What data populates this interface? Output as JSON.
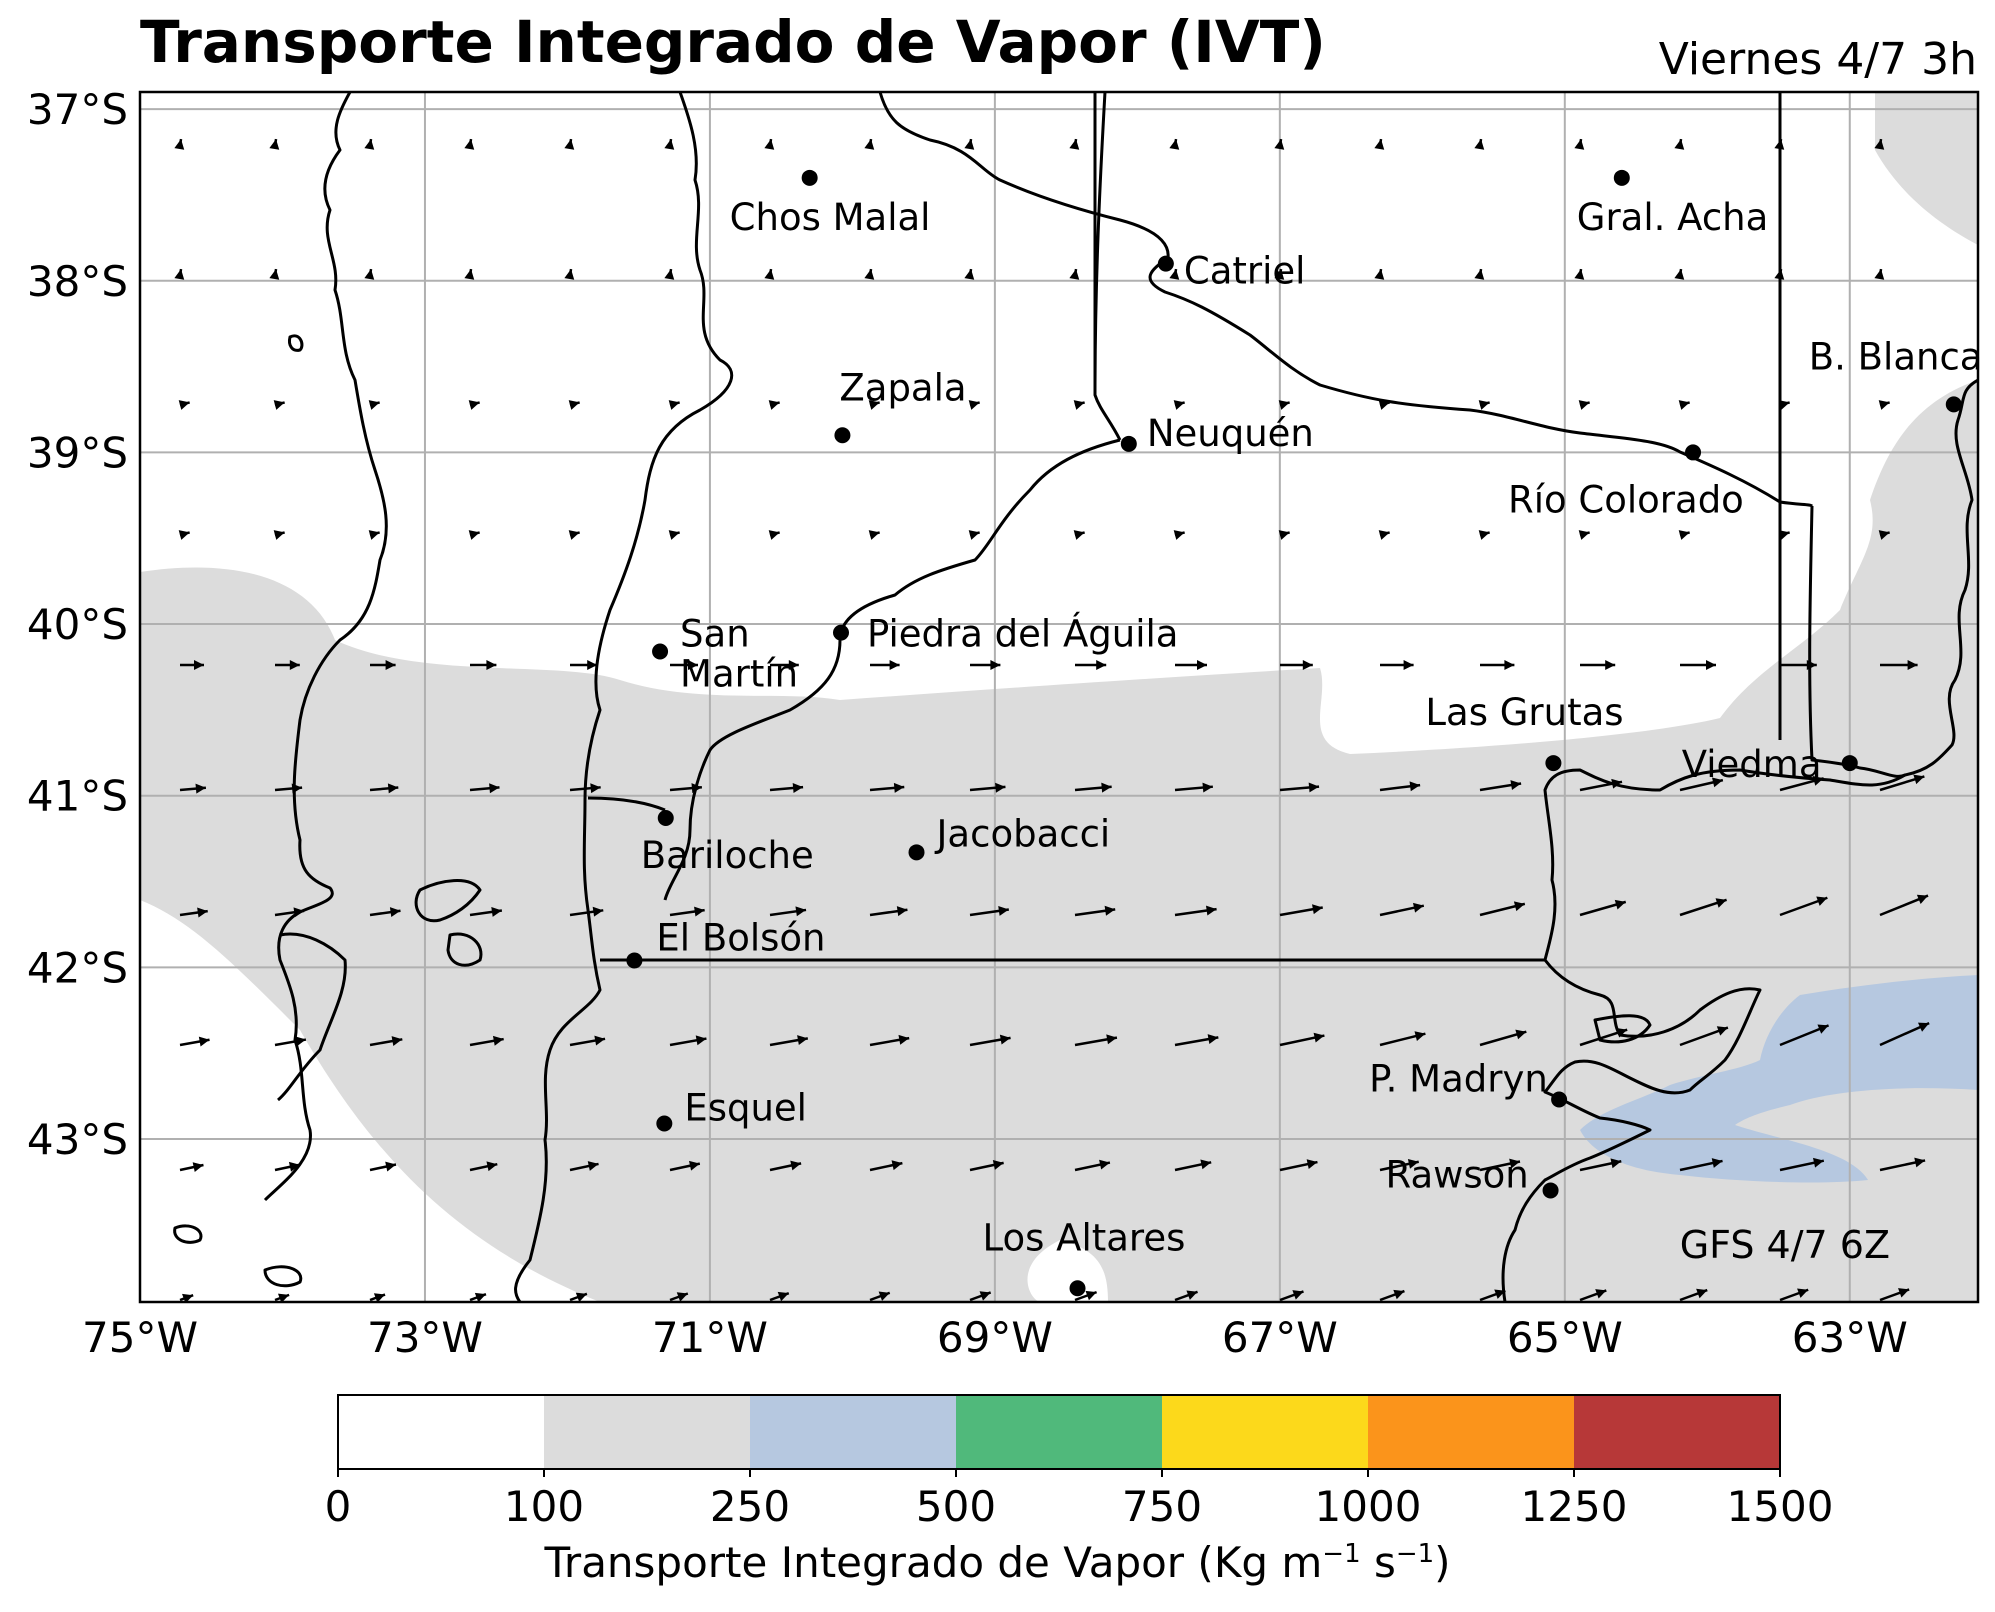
{
  "header": {
    "title": "Transporte Integrado de Vapor (IVT)",
    "date": "Viernes 4/7 3h"
  },
  "map": {
    "lon_range": [
      -75,
      -62.1
    ],
    "lat_range": [
      -43.95,
      -36.9
    ],
    "lat_ticks": [
      "37°S",
      "38°S",
      "39°S",
      "40°S",
      "41°S",
      "42°S",
      "43°S"
    ],
    "lon_ticks": [
      "75°W",
      "73°W",
      "71°W",
      "69°W",
      "67°W",
      "65°W",
      "63°W"
    ],
    "grid": true,
    "model_label": "GFS 4/7 6Z",
    "fill_colors": {
      "100-250": "#dcdcdc",
      "250-500": "#b6c8e0"
    },
    "cities": [
      {
        "name": "Chos Malal",
        "lon": -70.3,
        "lat": -37.4
      },
      {
        "name": "Gral. Acha",
        "lon": -64.6,
        "lat": -37.4
      },
      {
        "name": "Catriel",
        "lon": -67.8,
        "lat": -37.9
      },
      {
        "name": "B. Blanca",
        "lon": -62.27,
        "lat": -38.72
      },
      {
        "name": "Zapala",
        "lon": -70.07,
        "lat": -38.9
      },
      {
        "name": "Neuquén",
        "lon": -68.06,
        "lat": -38.95
      },
      {
        "name": "Río Colorado",
        "lon": -64.1,
        "lat": -39.0
      },
      {
        "name": "San Martín",
        "lon": -71.35,
        "lat": -40.16
      },
      {
        "name": "Piedra del Águila",
        "lon": -70.08,
        "lat": -40.05
      },
      {
        "name": "Las Grutas",
        "lon": -65.08,
        "lat": -40.81
      },
      {
        "name": "Viedma",
        "lon": -63.0,
        "lat": -40.81
      },
      {
        "name": "Bariloche",
        "lon": -71.31,
        "lat": -41.13
      },
      {
        "name": "Jacobacci",
        "lon": -69.55,
        "lat": -41.33
      },
      {
        "name": "El Bolsón",
        "lon": -71.53,
        "lat": -41.96
      },
      {
        "name": "P. Madryn",
        "lon": -65.04,
        "lat": -42.77
      },
      {
        "name": "Esquel",
        "lon": -71.32,
        "lat": -42.91
      },
      {
        "name": "Rawson",
        "lon": -65.1,
        "lat": -43.3
      },
      {
        "name": "Los Altares",
        "lon": -68.42,
        "lat": -43.87
      }
    ]
  },
  "colorbar": {
    "ticks": [
      "0",
      "100",
      "250",
      "500",
      "750",
      "1000",
      "1250",
      "1500"
    ],
    "colors": [
      "#ffffff",
      "#dcdcdc",
      "#b6c8e0",
      "#50b97b",
      "#fcd91b",
      "#fb941b",
      "#b73838"
    ],
    "label_main": "Transporte Integrado de Vapor (Kg m",
    "sup1": "−1",
    "label_mid": " s",
    "sup2": "−1",
    "label_end": ")"
  }
}
